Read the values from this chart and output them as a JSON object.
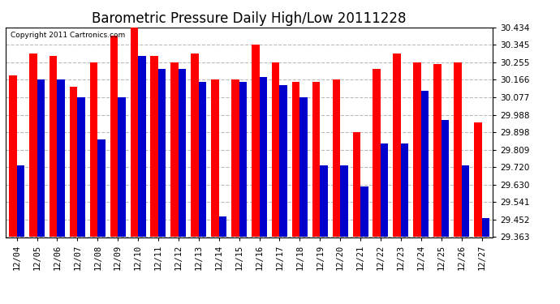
{
  "title": "Barometric Pressure Daily High/Low 20111228",
  "copyright": "Copyright 2011 Cartronics.com",
  "dates": [
    "12/04",
    "12/05",
    "12/06",
    "12/07",
    "12/08",
    "12/09",
    "12/10",
    "12/11",
    "12/12",
    "12/13",
    "12/14",
    "12/15",
    "12/16",
    "12/17",
    "12/18",
    "12/19",
    "12/20",
    "12/21",
    "12/22",
    "12/23",
    "12/24",
    "12/25",
    "12/26",
    "12/27"
  ],
  "highs": [
    30.19,
    30.3,
    30.29,
    30.13,
    30.255,
    30.39,
    30.434,
    30.29,
    30.255,
    30.3,
    30.166,
    30.166,
    30.345,
    30.255,
    30.155,
    30.155,
    30.166,
    29.898,
    30.22,
    30.3,
    30.255,
    30.245,
    30.255,
    29.95
  ],
  "lows": [
    29.73,
    30.17,
    30.17,
    30.077,
    29.86,
    30.077,
    30.29,
    30.22,
    30.22,
    30.155,
    29.47,
    30.155,
    30.18,
    30.14,
    30.077,
    29.73,
    29.73,
    29.62,
    29.84,
    29.84,
    30.11,
    29.96,
    29.73,
    29.462
  ],
  "ymin": 29.363,
  "ymax": 30.434,
  "yticks": [
    29.363,
    29.452,
    29.541,
    29.63,
    29.72,
    29.809,
    29.898,
    29.988,
    30.077,
    30.166,
    30.255,
    30.345,
    30.434
  ],
  "bar_width": 0.38,
  "high_color": "#ff0000",
  "low_color": "#0000cc",
  "bg_color": "#ffffff",
  "grid_color": "#bbbbbb",
  "title_fontsize": 12,
  "tick_fontsize": 7.5,
  "copyright_fontsize": 6.5
}
